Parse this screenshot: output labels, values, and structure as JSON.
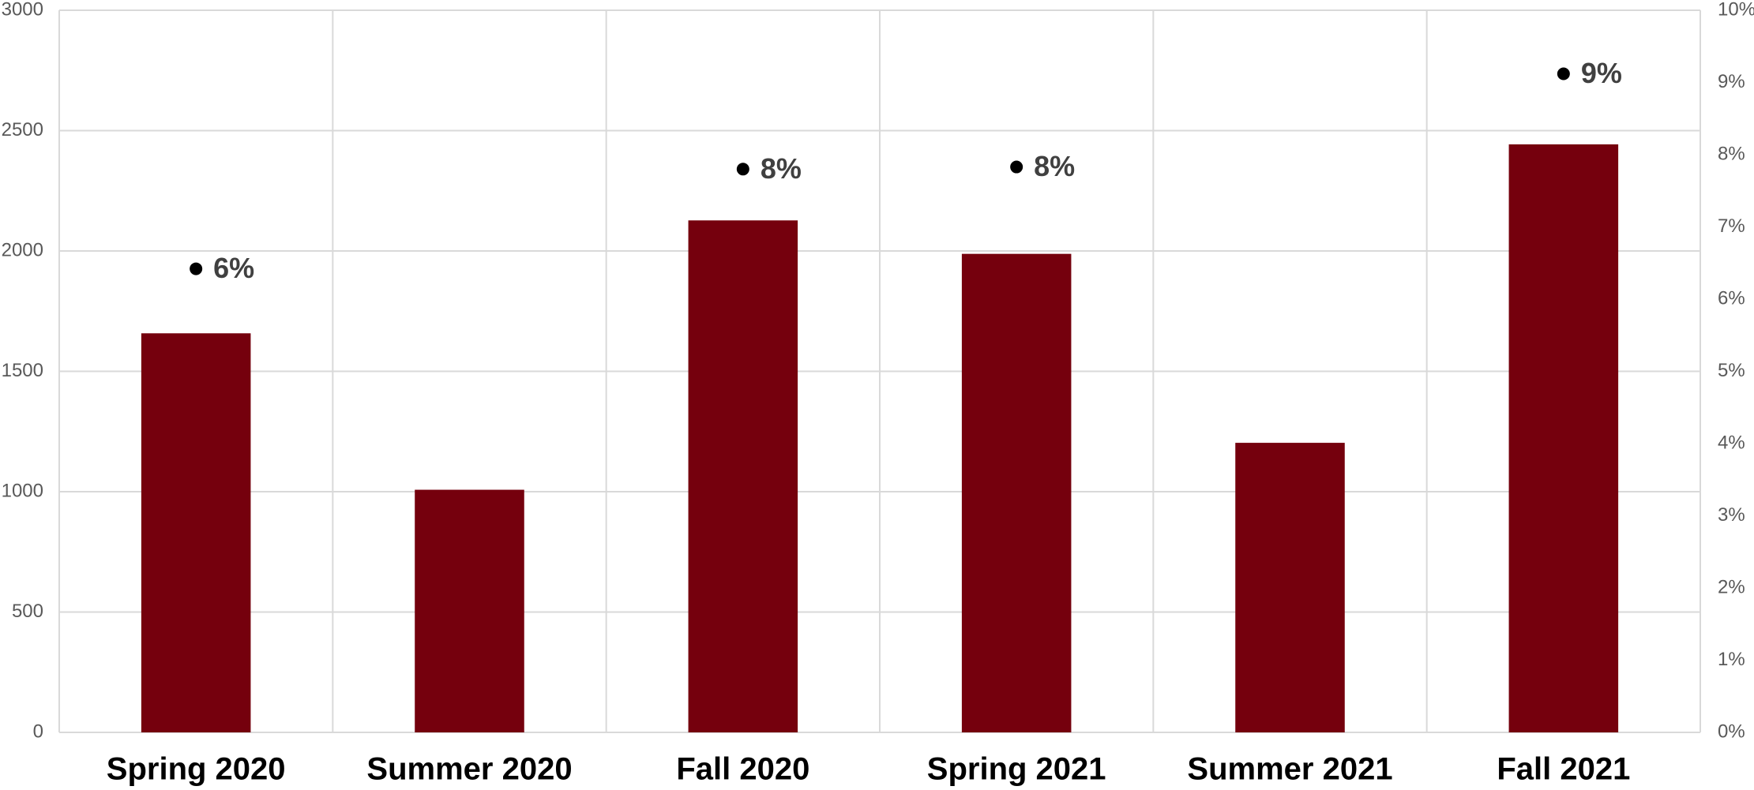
{
  "chart_data": {
    "type": "bar",
    "categories": [
      "Spring 2020",
      "Summer 2020",
      "Fall 2020",
      "Spring 2021",
      "Summer 2021",
      "Fall 2021"
    ],
    "series": [
      {
        "type": "bar",
        "color": "#75000d",
        "values": [
          1658,
          1008,
          2127,
          1988,
          1203,
          2443
        ]
      },
      {
        "type": "scatter",
        "axis": "y2",
        "color": "#000000",
        "values": [
          6.42,
          null,
          7.8,
          7.83,
          null,
          9.12
        ],
        "value_labels": [
          "6%",
          null,
          "8%",
          "8%",
          null,
          "9%"
        ]
      }
    ],
    "ylim": [
      0,
      3000
    ],
    "yticks": [
      0,
      500,
      1000,
      1500,
      2000,
      2500,
      3000
    ],
    "y2lim": [
      0,
      10
    ],
    "y2ticks": [
      {
        "value": 0,
        "label": "0%"
      },
      {
        "value": 1,
        "label": "1%"
      },
      {
        "value": 2,
        "label": "2%"
      },
      {
        "value": 3,
        "label": "3%"
      },
      {
        "value": 4,
        "label": "4%"
      },
      {
        "value": 5,
        "label": "5%"
      },
      {
        "value": 6,
        "label": "6%"
      },
      {
        "value": 7,
        "label": "7%"
      },
      {
        "value": 8,
        "label": "8%"
      },
      {
        "value": 9,
        "label": "9%"
      },
      {
        "value": 10,
        "label": "10%"
      }
    ],
    "grid": true
  }
}
